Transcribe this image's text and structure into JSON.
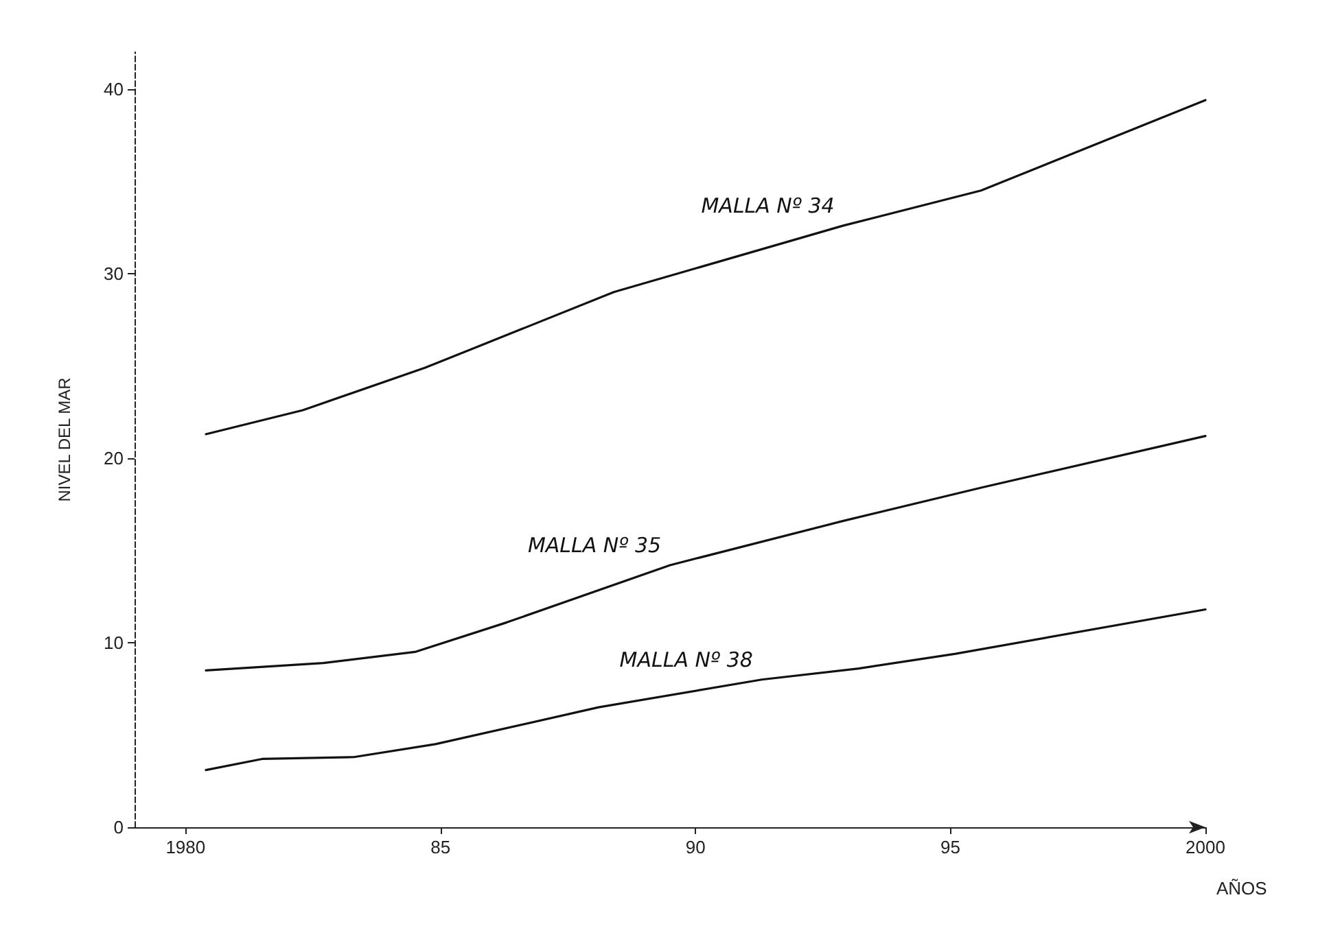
{
  "chart_data": {
    "type": "line",
    "ylabel": "NIVEL DEL MAR",
    "xlabel": "AÑOS",
    "xlim": [
      1979,
      2000
    ],
    "xticks": [
      {
        "value": 1980,
        "label": "1980"
      },
      {
        "value": 1985,
        "label": "85"
      },
      {
        "value": 1990,
        "label": "90"
      },
      {
        "value": 1995,
        "label": "95"
      },
      {
        "value": 2000,
        "label": "2000"
      }
    ],
    "ylim": [
      0,
      42
    ],
    "yticks": [
      0,
      10,
      20,
      30,
      40
    ],
    "grid": false,
    "legend": false,
    "marker": "none",
    "line_style": "solid",
    "series": [
      {
        "name": "MALLA Nº 34",
        "color": "#111111",
        "x": [
          1980.4,
          1982.3,
          1984.7,
          1988.4,
          1992.9,
          1995.6,
          2000
        ],
        "values": [
          21.3,
          22.6,
          24.9,
          29.0,
          32.6,
          34.5,
          39.4
        ]
      },
      {
        "name": "MALLA Nº 35",
        "color": "#111111",
        "x": [
          1980.4,
          1982.7,
          1984.5,
          1986.3,
          1989.5,
          1992.9,
          1995.6,
          2000
        ],
        "values": [
          8.5,
          8.9,
          9.5,
          11.1,
          14.2,
          16.6,
          18.4,
          21.2
        ]
      },
      {
        "name": "MALLA Nº 38",
        "color": "#111111",
        "x": [
          1980.4,
          1981.5,
          1983.3,
          1984.9,
          1988.1,
          1991.3,
          1993.2,
          1995.1,
          2000
        ],
        "values": [
          3.1,
          3.7,
          3.8,
          4.5,
          6.5,
          8.0,
          8.6,
          9.4,
          11.8
        ]
      }
    ]
  }
}
